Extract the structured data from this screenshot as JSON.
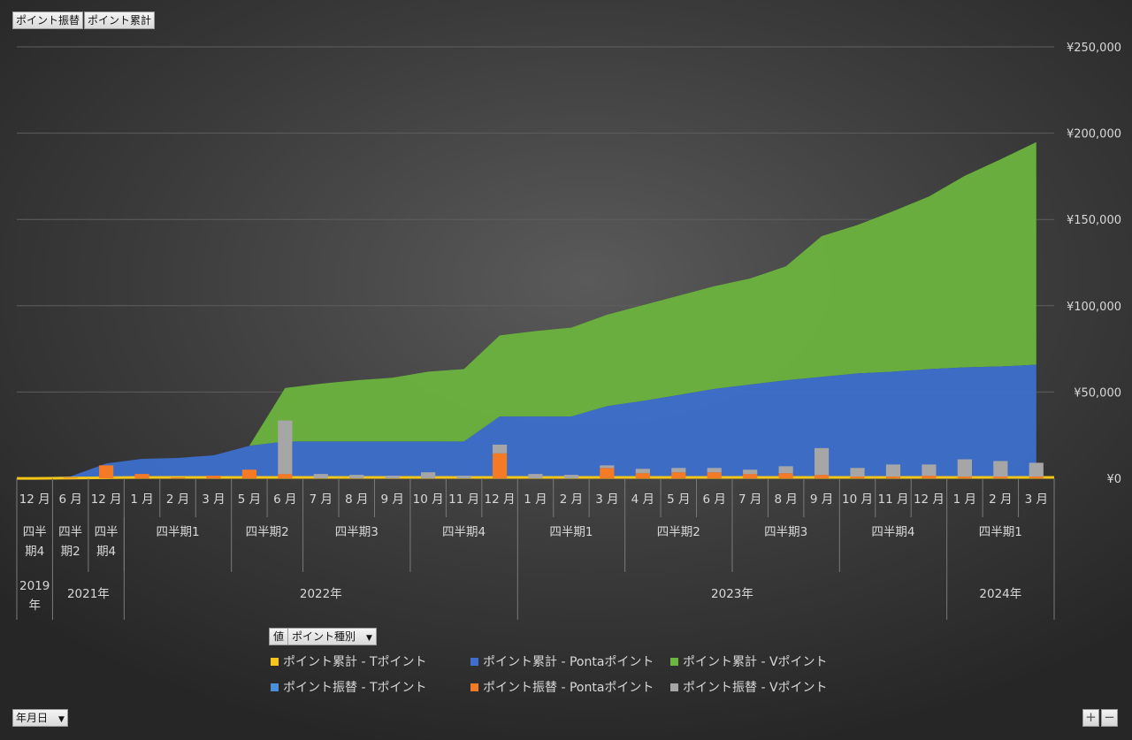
{
  "filters": {
    "top_left": [
      "ポイント振替",
      "ポイント累計"
    ],
    "values_label": "値",
    "legend_field": "ポイント種別",
    "axis_field": "年月日"
  },
  "zoom": {
    "plus": "+",
    "minus": "−"
  },
  "colors": {
    "t_point": "#f5c518",
    "ponta_area": "#3d6fcb",
    "v_area": "#6cb33f",
    "t_bar": "#4a90d9",
    "ponta_bar": "#f47a25",
    "v_bar": "#a6a6a6",
    "grid": "#5e5e5e"
  },
  "chart_data": {
    "type": "area",
    "ylim": [
      0,
      250000
    ],
    "yticks": [
      "¥0",
      "¥50,000",
      "¥100,000",
      "¥150,000",
      "¥200,000",
      "¥250,000"
    ],
    "categories": [
      "12 月",
      "6 月",
      "12 月",
      "1 月",
      "2 月",
      "3 月",
      "5 月",
      "6 月",
      "7 月",
      "8 月",
      "9 月",
      "10 月",
      "11 月",
      "12 月",
      "1 月",
      "2 月",
      "3 月",
      "4 月",
      "5 月",
      "6 月",
      "7 月",
      "8 月",
      "9 月",
      "10 月",
      "11 月",
      "12 月",
      "1 月",
      "2 月",
      "3 月"
    ],
    "quarters": [
      {
        "label": "四半期4",
        "span": 1,
        "two_line": true
      },
      {
        "label": "四半期2",
        "span": 1,
        "two_line": true
      },
      {
        "label": "四半期4",
        "span": 1,
        "two_line": true
      },
      {
        "label": "四半期1",
        "span": 3
      },
      {
        "label": "四半期2",
        "span": 2
      },
      {
        "label": "四半期3",
        "span": 3
      },
      {
        "label": "四半期4",
        "span": 3
      },
      {
        "label": "四半期1",
        "span": 3
      },
      {
        "label": "四半期2",
        "span": 3
      },
      {
        "label": "四半期3",
        "span": 3
      },
      {
        "label": "四半期4",
        "span": 3
      },
      {
        "label": "四半期1",
        "span": 3
      }
    ],
    "years": [
      {
        "label": "2019年",
        "span": 1,
        "two_line": true
      },
      {
        "label": "2021年",
        "span": 2
      },
      {
        "label": "2022年",
        "span": 11
      },
      {
        "label": "2023年",
        "span": 12
      },
      {
        "label": "2024年",
        "span": 3
      }
    ],
    "series": [
      {
        "name": "ポイント累計 - Tポイント",
        "kind": "area",
        "values": [
          200,
          400,
          600,
          800,
          800,
          800,
          800,
          800,
          800,
          800,
          800,
          800,
          800,
          800,
          800,
          800,
          800,
          800,
          800,
          800,
          800,
          800,
          800,
          800,
          800,
          800,
          800,
          800,
          800
        ]
      },
      {
        "name": "ポイント累計 - Pontaポイント",
        "kind": "area",
        "values": [
          300,
          700,
          8000,
          10500,
          11000,
          12500,
          18000,
          20500,
          20500,
          20500,
          20500,
          20500,
          20500,
          35000,
          35000,
          35000,
          41000,
          44000,
          47500,
          51000,
          53500,
          56000,
          58000,
          60000,
          61000,
          62500,
          63500,
          64000,
          65000
        ]
      },
      {
        "name": "ポイント累計 - Vポイント",
        "kind": "area",
        "values": [
          0,
          0,
          0,
          0,
          0,
          0,
          0,
          31000,
          33500,
          35500,
          37000,
          40500,
          42000,
          47000,
          49500,
          51500,
          53000,
          55500,
          57500,
          59500,
          61500,
          66000,
          81500,
          86000,
          93000,
          100000,
          111000,
          120000,
          129000
        ]
      },
      {
        "name": "ポイント振替 - Tポイント",
        "kind": "bar",
        "values": [
          0,
          0,
          0,
          0,
          0,
          0,
          0,
          0,
          0,
          0,
          0,
          0,
          0,
          0,
          0,
          0,
          0,
          0,
          0,
          0,
          0,
          0,
          0,
          0,
          0,
          0,
          0,
          0,
          0
        ]
      },
      {
        "name": "ポイント振替 - Pontaポイント",
        "kind": "bar",
        "values": [
          0,
          400,
          7500,
          2500,
          500,
          1500,
          5000,
          2500,
          0,
          0,
          0,
          0,
          0,
          14500,
          0,
          0,
          6000,
          3000,
          3500,
          3500,
          2500,
          3000,
          2000,
          1000,
          1000,
          1500,
          1000,
          1000,
          1000
        ]
      },
      {
        "name": "ポイント振替 - Vポイント",
        "kind": "bar",
        "values": [
          0,
          0,
          0,
          0,
          0,
          0,
          0,
          31000,
          2500,
          2000,
          1500,
          3500,
          1500,
          5000,
          2500,
          2000,
          1500,
          2500,
          2500,
          2500,
          2500,
          4000,
          15500,
          5000,
          7000,
          6500,
          10000,
          9000,
          8000
        ]
      }
    ],
    "legend_order": [
      0,
      1,
      2,
      3,
      4,
      5
    ],
    "legend_position": "bottom"
  }
}
